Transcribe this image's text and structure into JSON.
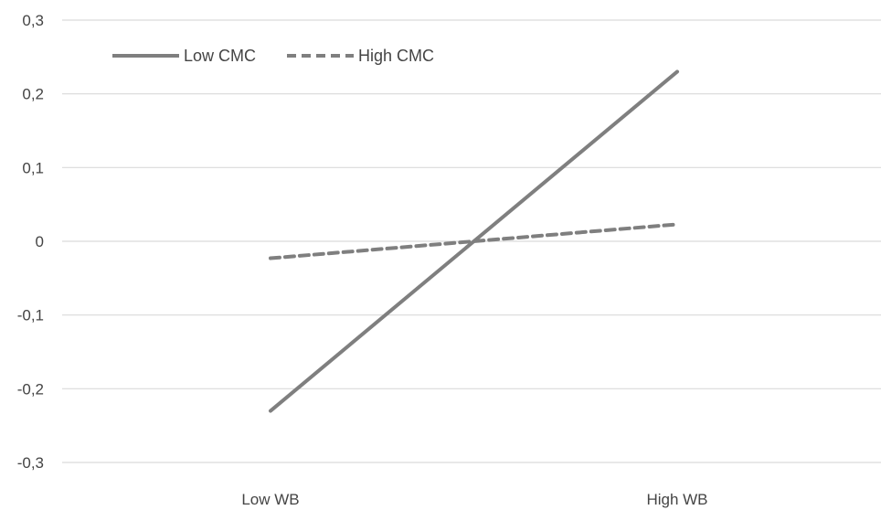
{
  "chart_data": {
    "type": "line",
    "title": "",
    "xlabel": "",
    "ylabel": "",
    "categories": [
      "Low WB",
      "High WB"
    ],
    "ylim": [
      -0.3,
      0.3
    ],
    "yticks": [
      "0,3",
      "0,2",
      "0,1",
      "0",
      "-0,1",
      "-0,2",
      "-0,3"
    ],
    "ytick_values": [
      0.3,
      0.2,
      0.1,
      0,
      -0.1,
      -0.2,
      -0.3
    ],
    "grid": true,
    "legend_position": "top-left",
    "series": [
      {
        "name": "Low CMC",
        "values": [
          -0.23,
          0.23
        ],
        "style": "solid",
        "color": "#7f7f7f"
      },
      {
        "name": "High CMC",
        "values": [
          -0.023,
          0.023
        ],
        "style": "dashed",
        "color": "#7f7f7f"
      }
    ]
  }
}
